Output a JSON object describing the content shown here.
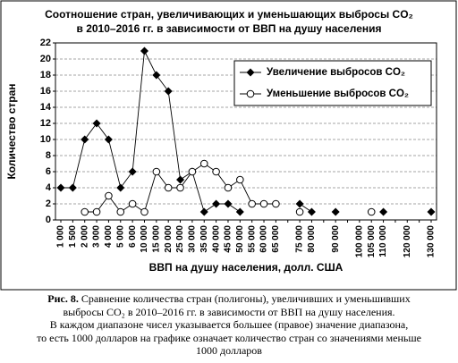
{
  "chart_data": {
    "type": "line",
    "title": [
      "Соотношение стран, увеличивающих и уменьшающих выбросы CO₂",
      "в 2010–2016 гг. в зависимости от ВВП на душу населения"
    ],
    "x_label": "ВВП на душу населения, долл. США",
    "y_label": "Количество стран",
    "categories": [
      "1 000",
      "1 500",
      "2 000",
      "3 000",
      "4 000",
      "5 000",
      "6 000",
      "10 000",
      "15 000",
      "20 000",
      "25 000",
      "30 000",
      "35 000",
      "40 000",
      "45 000",
      "50 000",
      "55 000",
      "60 000",
      "65 000",
      null,
      "75 000",
      "80 000",
      null,
      "90 000",
      null,
      "100 000",
      "105 000",
      "110 000",
      null,
      "120 000",
      null,
      "130 000"
    ],
    "series": [
      {
        "name": "Увеличение выбросов CO₂",
        "color": "#000000",
        "marker": "diamond",
        "values": [
          4,
          4,
          10,
          12,
          10,
          4,
          6,
          21,
          18,
          16,
          5,
          6,
          1,
          2,
          2,
          1,
          null,
          null,
          null,
          null,
          2,
          1,
          null,
          1,
          null,
          null,
          null,
          1,
          null,
          null,
          null,
          1
        ]
      },
      {
        "name": "Уменьшение выбросов CO₂",
        "color": "#000000",
        "marker": "circle",
        "values": [
          null,
          null,
          1,
          1,
          3,
          1,
          2,
          1,
          6,
          4,
          4,
          6,
          7,
          6,
          4,
          5,
          2,
          2,
          2,
          null,
          1,
          null,
          null,
          null,
          null,
          null,
          1,
          null,
          null,
          null,
          null,
          null
        ]
      }
    ],
    "ylim": [
      0,
      22
    ],
    "yticks": [
      0,
      2,
      4,
      6,
      8,
      10,
      12,
      14,
      16,
      18,
      20,
      22
    ],
    "grid": true,
    "legend": "upper right"
  },
  "caption": {
    "label": "Рис. 8.",
    "lines": [
      "Сравнение количества стран (полигоны), увеличивших и уменьшивших",
      "выбросы CO₂ в 2010–2016 гг. в зависимости от ВВП на душу населения.",
      "В каждом диапазоне чисел указывается большее (правое) значение диапазона,",
      "то есть 1000 долларов на графике означает количество стран со значениями меньше",
      "1000 долларов"
    ]
  }
}
